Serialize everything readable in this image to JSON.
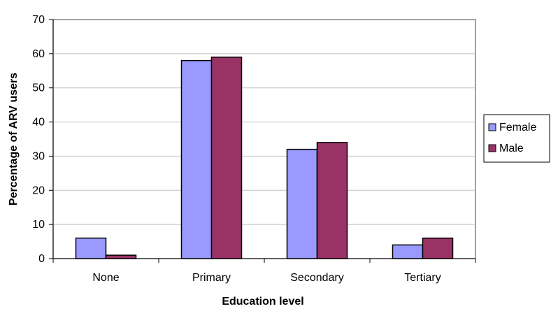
{
  "chart_data": {
    "type": "bar",
    "categories": [
      "None",
      "Primary",
      "Secondary",
      "Tertiary"
    ],
    "series": [
      {
        "name": "Female",
        "values": [
          6,
          58,
          32,
          4
        ],
        "color": "#9999ff"
      },
      {
        "name": "Male",
        "values": [
          1,
          59,
          34,
          6
        ],
        "color": "#993366"
      }
    ],
    "xlabel": "Education level",
    "ylabel": "Percentage of ARV users",
    "ylim": [
      0,
      70
    ],
    "yticks": [
      0,
      10,
      20,
      30,
      40,
      50,
      60,
      70
    ],
    "grid": true,
    "legend_position": "right"
  }
}
